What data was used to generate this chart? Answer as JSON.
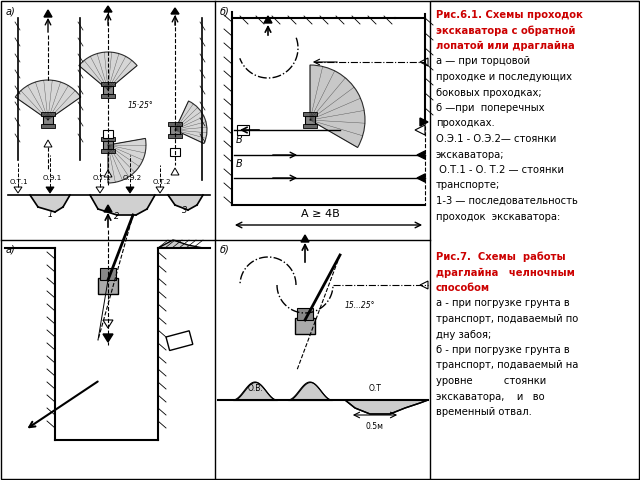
{
  "text1_lines": [
    {
      "text": "Рис.6.1. Схемы проходок",
      "bold": true,
      "color": "#cc0000"
    },
    {
      "text": "экскаватора с обратной",
      "bold": true,
      "color": "#cc0000"
    },
    {
      "text": "лопатой или драглайна",
      "bold": true,
      "color": "#cc0000"
    },
    {
      "text": "а — при торцовой",
      "bold": false,
      "color": "#000000"
    },
    {
      "text": "проходке и последующих",
      "bold": false,
      "color": "#000000"
    },
    {
      "text": "боковых проходках;",
      "bold": false,
      "color": "#000000"
    },
    {
      "text": "б —при  поперечных",
      "bold": false,
      "color": "#000000"
    },
    {
      "text": "проходках.",
      "bold": false,
      "color": "#000000"
    },
    {
      "text": "О.Э.1 - О.Э.2— стоянки",
      "bold": false,
      "color": "#000000"
    },
    {
      "text": "экскаватора;",
      "bold": false,
      "color": "#000000"
    },
    {
      "text": " О.Т.1 - О. Т.2 — стоянки",
      "bold": false,
      "color": "#000000"
    },
    {
      "text": "транспорте;",
      "bold": false,
      "color": "#000000"
    },
    {
      "text": "1-3 — последовательность",
      "bold": false,
      "color": "#000000"
    },
    {
      "text": "проходок  экскаватора:",
      "bold": false,
      "color": "#000000"
    }
  ],
  "text2_lines": [
    {
      "text": "Рис.7.  Схемы  работы",
      "bold": true,
      "color": "#cc0000"
    },
    {
      "text": "драглайна   челночным",
      "bold": true,
      "color": "#cc0000"
    },
    {
      "text": "способом",
      "bold": true,
      "color": "#cc0000"
    },
    {
      "text": "а - при погрузке грунта в",
      "bold": false,
      "color": "#000000"
    },
    {
      "text": "транспорт, подаваемый по",
      "bold": false,
      "color": "#000000"
    },
    {
      "text": "дну забоя;",
      "bold": false,
      "color": "#000000"
    },
    {
      "text": "б - при погрузке грунта в",
      "bold": false,
      "color": "#000000"
    },
    {
      "text": "транспорт, подаваемый на",
      "bold": false,
      "color": "#000000"
    },
    {
      "text": "уровне          стоянки",
      "bold": false,
      "color": "#000000"
    },
    {
      "text": "экскаватора,    и   во",
      "bold": false,
      "color": "#000000"
    },
    {
      "text": "временный отвал.",
      "bold": false,
      "color": "#000000"
    }
  ],
  "bg_color": "#ffffff",
  "fig_width": 6.4,
  "fig_height": 4.8,
  "dpi": 100
}
